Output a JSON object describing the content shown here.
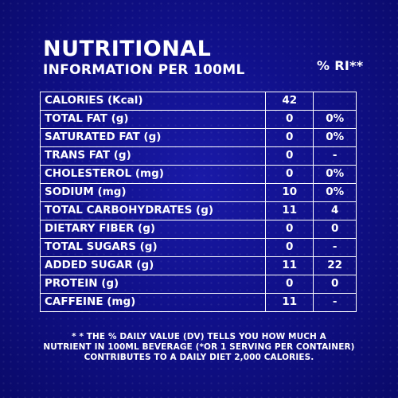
{
  "header": {
    "title": "NUTRITIONAL",
    "subtitle": "INFORMATION PER 100ML",
    "ri_label": "% RI**"
  },
  "rows": [
    {
      "label": "CALORIES (Kcal)",
      "value": "42",
      "ri": ""
    },
    {
      "label": "TOTAL FAT (g)",
      "value": "0",
      "ri": "0%"
    },
    {
      "label": "SATURATED FAT (g)",
      "value": "0",
      "ri": "0%"
    },
    {
      "label": "TRANS FAT (g)",
      "value": "0",
      "ri": "-"
    },
    {
      "label": "CHOLESTEROL  (mg)",
      "value": "0",
      "ri": "0%"
    },
    {
      "label": "SODIUM (mg)",
      "value": "10",
      "ri": "0%"
    },
    {
      "label": "TOTAL CARBOHYDRATES (g)",
      "value": "11",
      "ri": "4"
    },
    {
      "label": "DIETARY FIBER (g)",
      "value": "0",
      "ri": "0"
    },
    {
      "label": "TOTAL SUGARS (g)",
      "value": "0",
      "ri": "-"
    },
    {
      "label": "ADDED SUGAR (g)",
      "value": "11",
      "ri": "22"
    },
    {
      "label": "PROTEIN (g)",
      "value": "0",
      "ri": "0"
    },
    {
      "label": "CAFFEINE (mg)",
      "value": "11",
      "ri": "-"
    }
  ],
  "footnote": {
    "line1": "* * THE % DAILY VALUE (DV) TELLS YOU HOW MUCH A",
    "line2": "NUTRIENT IN 100ML BEVERAGE (*OR 1 SERVING PER CONTAINER)",
    "line3": "CONTRIBUTES TO A DAILY DIET 2,000 CALORIES."
  }
}
